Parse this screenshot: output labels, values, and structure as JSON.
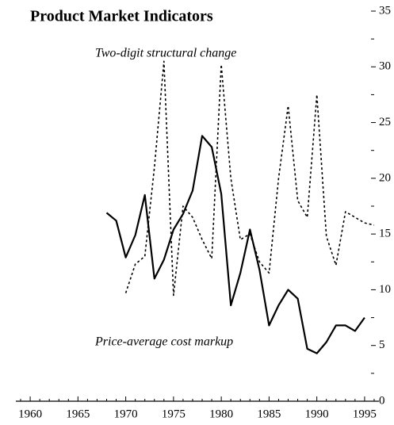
{
  "chart_data": {
    "type": "line",
    "title": "Product Market Indicators",
    "series": [
      {
        "name": "Two-digit structural change",
        "color": "#000000",
        "dash": "dotted",
        "x": [
          1970,
          1971,
          1972,
          1973,
          1974,
          1975,
          1976,
          1977,
          1978,
          1979,
          1980,
          1981,
          1982,
          1983,
          1984,
          1985,
          1986,
          1987,
          1988,
          1989,
          1990,
          1991,
          1992,
          1993,
          1994,
          1995,
          1996
        ],
        "values": [
          9.7,
          12.3,
          13.0,
          21,
          30.5,
          9.5,
          17.5,
          16.5,
          14.5,
          12.8,
          30.2,
          20,
          14.5,
          15,
          12.5,
          11.5,
          20,
          26.5,
          18,
          16.5,
          27.5,
          14.8,
          12.2,
          17,
          16.5,
          16,
          15.8
        ]
      },
      {
        "name": "Price-average cost markup",
        "color": "#000000",
        "dash": "solid",
        "x": [
          1968,
          1969,
          1970,
          1971,
          1972,
          1973,
          1974,
          1975,
          1976,
          1977,
          1978,
          1979,
          1980,
          1981,
          1982,
          1983,
          1984,
          1985,
          1986,
          1987,
          1988,
          1989,
          1990,
          1991,
          1992,
          1993,
          1994,
          1995
        ],
        "values": [
          16.9,
          16.2,
          12.9,
          14.9,
          18.5,
          11,
          12.7,
          15.4,
          16.8,
          18.9,
          23.8,
          22.8,
          18.6,
          8.6,
          11.5,
          15.4,
          11.8,
          6.8,
          8.6,
          10,
          9.2,
          4.7,
          4.3,
          5.3,
          6.8,
          6.8,
          6.3,
          7.5
        ]
      }
    ],
    "xlim": [
      1958.5,
      1996.5
    ],
    "xticks": [
      1960,
      1965,
      1970,
      1975,
      1980,
      1985,
      1990,
      1995
    ],
    "xminor_ticks": [
      1959,
      1961,
      1962,
      1963,
      1964,
      1966,
      1967,
      1968,
      1969,
      1971,
      1972,
      1973,
      1974,
      1976,
      1977,
      1978,
      1979,
      1981,
      1982,
      1983,
      1984,
      1986,
      1987,
      1988,
      1989,
      1991,
      1992,
      1993,
      1994,
      1996
    ],
    "ylim": [
      0,
      35
    ],
    "yticks": [
      0,
      5,
      10,
      15,
      20,
      25,
      30,
      35
    ],
    "yminor_ticks": [
      2.5,
      7.5,
      12.5,
      17.5,
      22.5,
      27.5,
      32.5
    ],
    "y_axis_side": "right",
    "grid": false
  }
}
